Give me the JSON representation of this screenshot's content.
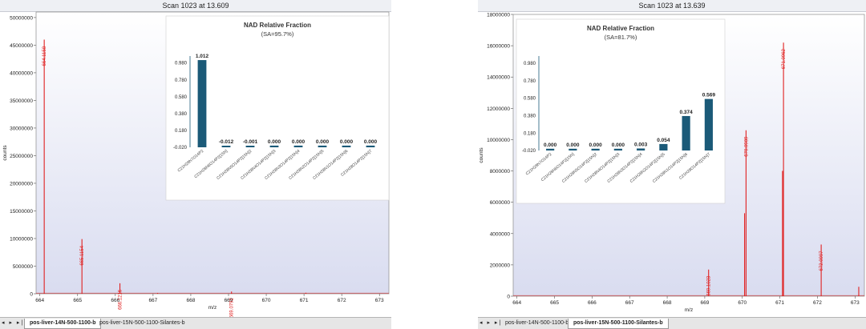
{
  "left": {
    "scan_title": "Scan 1023 at 13.609",
    "ylabel": "counts",
    "xlabel": "m/z",
    "tabs": [
      "pos-liver-14N-500-1100-b",
      "pos-liver-15N-500-1100-Silantes-b"
    ],
    "active_tab": 0,
    "nav_glyphs": "◂ ▸ ▸|",
    "chart_data": {
      "type": "bar",
      "xlim": [
        663.9,
        673.25
      ],
      "ylim": [
        0,
        51000000
      ],
      "xticks": [
        "664",
        "665",
        "666",
        "667",
        "668",
        "669",
        "670",
        "671",
        "672",
        "673"
      ],
      "yticks": [
        "0",
        "5000000",
        "10000000",
        "15000000",
        "20000000",
        "25000000",
        "30000000",
        "35000000",
        "40000000",
        "45000000",
        "50000000"
      ],
      "peaks": [
        {
          "x": 664.1158,
          "y": 46000000,
          "label": "664.1158"
        },
        {
          "x": 665.1154,
          "y": 9900000,
          "label": "665.1154"
        },
        {
          "x": 666.1216,
          "y": 1900000,
          "label": "666.1216"
        },
        {
          "x": 669.0792,
          "y": 400000,
          "label": "669.0792"
        },
        {
          "x": 667.12,
          "y": 150000,
          "label": ""
        },
        {
          "x": 671.05,
          "y": 180000,
          "label": ""
        }
      ]
    },
    "inset": {
      "title": "NAD Relative Fraction",
      "subtitle": "(SA=95.7%)",
      "chart_data": {
        "type": "bar",
        "categories": [
          "C21H28N7O14P2",
          "C21H28N6O14P2[15N]",
          "C21H28N5O14P2[15N]2",
          "C21H28N4O14P2[15N]3",
          "C21H28N3O14P2[15N]4",
          "C21H28N2O14P2[15N]5",
          "C21H28N1O14P2[15N]6",
          "C21H28O14P2[15N]7"
        ],
        "values": [
          1.012,
          -0.012,
          -0.001,
          0.0,
          0.0,
          0.0,
          0.0,
          0.0
        ],
        "value_labels": [
          "1.012",
          "-0.012",
          "-0.001",
          "0.000",
          "0.000",
          "0.000",
          "0.000",
          "0.000"
        ],
        "yticks": [
          "-0.020",
          "0.180",
          "0.380",
          "0.580",
          "0.780",
          "0.980"
        ],
        "ylim": [
          -0.02,
          1.06
        ],
        "color": "#1b5a78"
      }
    }
  },
  "right": {
    "scan_title": "Scan 1023 at 13.639",
    "ylabel": "counts",
    "xlabel": "m/z",
    "tabs": [
      "pos-liver-14N-500-1100-b",
      "pos-liver-15N-500-1100-Silantes-b"
    ],
    "active_tab": 1,
    "nav_glyphs": "◂ ▸ ▸|",
    "chart_data": {
      "type": "bar",
      "xlim": [
        663.9,
        673.25
      ],
      "ylim": [
        0,
        18000000
      ],
      "xticks": [
        "664",
        "665",
        "666",
        "667",
        "668",
        "669",
        "670",
        "671",
        "672",
        "673"
      ],
      "yticks": [
        "0",
        "2000000",
        "4000000",
        "6000000",
        "8000000",
        "10000000",
        "12000000",
        "14000000",
        "16000000",
        "18000000"
      ],
      "peaks": [
        {
          "x": 669.1023,
          "y": 1700000,
          "label": "669.1023"
        },
        {
          "x": 670.0989,
          "y": 10600000,
          "label": "670.0989"
        },
        {
          "x": 671.0962,
          "y": 16200000,
          "label": "671.0962"
        },
        {
          "x": 672.0997,
          "y": 3300000,
          "label": "672.0997"
        },
        {
          "x": 673.1,
          "y": 600000,
          "label": ""
        },
        {
          "x": 670.06,
          "y": 5300000,
          "label": ""
        },
        {
          "x": 671.07,
          "y": 8000000,
          "label": ""
        }
      ]
    },
    "inset": {
      "title": "NAD Relative Fraction",
      "subtitle": "(SA=81.7%)",
      "chart_data": {
        "type": "bar",
        "categories": [
          "C21H28N7O14P2",
          "C21H28N6O14P2[15N]",
          "C21H28N5O14P2[15N]2",
          "C21H28N4O14P2[15N]3",
          "C21H28N3O14P2[15N]4",
          "C21H28N2O14P2[15N]5",
          "C21H28N1O14P2[15N]6",
          "C21H28O14P2[15N]7"
        ],
        "values": [
          0.0,
          0.0,
          0.0,
          0.0,
          0.003,
          0.054,
          0.374,
          0.569
        ],
        "value_labels": [
          "0.000",
          "0.000",
          "0.000",
          "0.000",
          "0.003",
          "0.054",
          "0.374",
          "0.569"
        ],
        "yticks": [
          "-0.020",
          "0.180",
          "0.380",
          "0.580",
          "0.780",
          "0.980"
        ],
        "ylim": [
          -0.02,
          1.06
        ],
        "color": "#1b5a78"
      }
    }
  }
}
